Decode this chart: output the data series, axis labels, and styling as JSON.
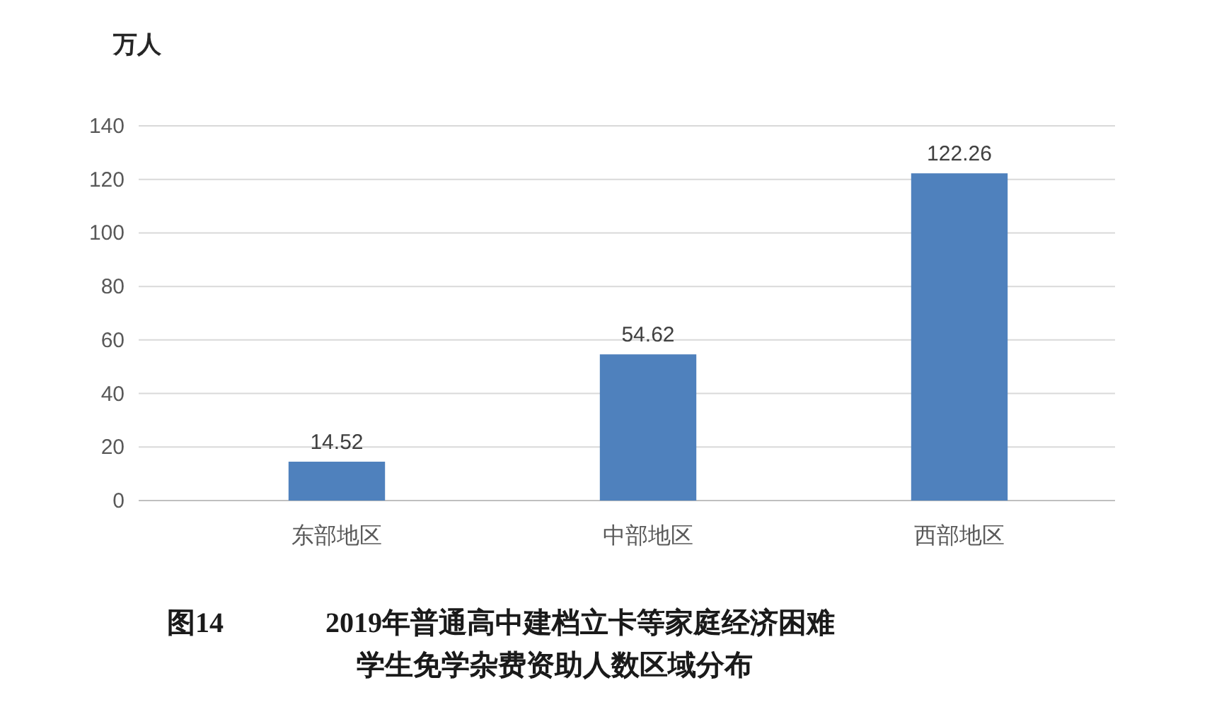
{
  "chart_data": {
    "type": "bar",
    "title": "2019年普通高中建档立卡等家庭经济困难学生免学杂费资助人数区域分布",
    "ylabel": "万人",
    "annotations": [
      "图14"
    ],
    "categories": [
      "东部地区",
      "中部地区",
      "西部地区"
    ],
    "values": [
      14.52,
      54.62,
      122.26
    ],
    "color": "#4f81bd",
    "ylim": [
      0,
      140
    ],
    "yticks": [
      0,
      20,
      40,
      60,
      80,
      100,
      120,
      140
    ],
    "grid": "y",
    "data_labels": true
  }
}
